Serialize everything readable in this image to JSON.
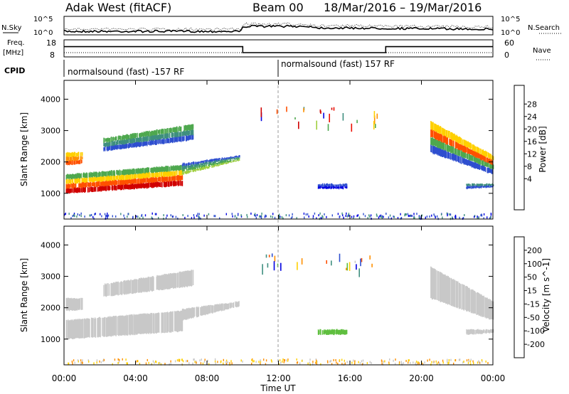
{
  "header": {
    "title": "Adak West (fitACF)",
    "beam": "Beam 00",
    "date_range": "18/Mar/2016 – 19/Mar/2016"
  },
  "side_labels": {
    "nsky": "N.Sky",
    "nsearch": "N.Search",
    "freq": "Freq.",
    "freq_unit": "[MHz]",
    "nave": "Nave",
    "cpid": "CPID"
  },
  "noise_ticks": {
    "top": "10^5",
    "bottom": "10^0"
  },
  "freq_ticks": {
    "left": [
      "18",
      "8"
    ],
    "right": [
      "60",
      "0"
    ]
  },
  "cpid_segments": [
    {
      "label": "normalsound (fast) -157 RF",
      "start_hour": 0
    },
    {
      "label": "normalsound (fast) 157 RF",
      "start_hour": 12
    }
  ],
  "chart_data": [
    {
      "type": "heatmap",
      "name": "power",
      "ylabel": "Slant Range [km]",
      "yticks": [
        "1000",
        "2000",
        "3000",
        "4000"
      ],
      "ylim": [
        180,
        4600
      ],
      "xlim_hours": [
        0,
        24
      ],
      "colorbar": {
        "label": "Power [dB]",
        "ticks": [
          "28",
          "24",
          "20",
          "16",
          "12",
          "8",
          "4"
        ],
        "colors": [
          "#0000e0",
          "#2f4fcf",
          "#3f8f7f",
          "#4fa84f",
          "#9fcf3f",
          "#ffd000",
          "#ff9000",
          "#ff5000",
          "#ee1000",
          "#d00000"
        ]
      },
      "bands": [
        {
          "x": [
            0.1,
            6.6
          ],
          "r0": [
            1000,
            1250
          ],
          "r1": [
            1600,
            1900
          ],
          "levels": [
            9,
            7,
            5,
            3
          ]
        },
        {
          "x": [
            6.6,
            9.8
          ],
          "r0": [
            1600,
            2050
          ],
          "r1": [
            1950,
            2200
          ],
          "levels": [
            4,
            3,
            2,
            1
          ]
        },
        {
          "x": [
            0.1,
            1.0
          ],
          "r0": [
            1900,
            1950
          ],
          "r1": [
            2300,
            2300
          ],
          "levels": [
            7,
            6,
            5
          ]
        },
        {
          "x": [
            2.2,
            7.2
          ],
          "r0": [
            2350,
            2700
          ],
          "r1": [
            2750,
            3200
          ],
          "levels": [
            1,
            2,
            3
          ]
        },
        {
          "x": [
            20.5,
            24.0
          ],
          "r0": [
            2300,
            1600
          ],
          "r1": [
            3300,
            2200
          ],
          "levels": [
            1,
            3,
            7,
            5
          ]
        },
        {
          "x": [
            22.5,
            24.0
          ],
          "r0": [
            1150,
            1200
          ],
          "r1": [
            1300,
            1300
          ],
          "levels": [
            1,
            2
          ]
        },
        {
          "x": [
            14.2,
            15.8
          ],
          "r0": [
            1150,
            1150
          ],
          "r1": [
            1300,
            1300
          ],
          "levels": [
            0,
            1
          ]
        }
      ]
    },
    {
      "type": "heatmap",
      "name": "velocity",
      "ylabel": "Slant Range [km]",
      "yticks": [
        "1000",
        "2000",
        "3000",
        "4000"
      ],
      "ylim": [
        180,
        4600
      ],
      "xlim_hours": [
        0,
        24
      ],
      "colorbar": {
        "label": "Velocity [m s^-1]",
        "ticks": [
          "200",
          "100",
          "50",
          "15",
          "-15",
          "-50",
          "-100",
          "-200"
        ],
        "colors": [
          "#0000e0",
          "#2f4fcf",
          "#3f8f7f",
          "#5fbf3f",
          "#c8c8c8",
          "#ffd000",
          "#ff9000",
          "#ff5000",
          "#e00000"
        ]
      },
      "bands": [
        {
          "x": [
            0.1,
            6.6
          ],
          "r0": [
            1000,
            1250
          ],
          "r1": [
            1600,
            1900
          ],
          "levels": [
            4
          ]
        },
        {
          "x": [
            6.6,
            9.8
          ],
          "r0": [
            1600,
            2050
          ],
          "r1": [
            1950,
            2200
          ],
          "levels": [
            4
          ]
        },
        {
          "x": [
            0.1,
            1.0
          ],
          "r0": [
            1900,
            1950
          ],
          "r1": [
            2300,
            2300
          ],
          "levels": [
            4
          ]
        },
        {
          "x": [
            2.2,
            7.2
          ],
          "r0": [
            2350,
            2700
          ],
          "r1": [
            2750,
            3200
          ],
          "levels": [
            4
          ]
        },
        {
          "x": [
            20.5,
            24.0
          ],
          "r0": [
            2300,
            1600
          ],
          "r1": [
            3300,
            2200
          ],
          "levels": [
            4
          ]
        },
        {
          "x": [
            22.5,
            24.0
          ],
          "r0": [
            1150,
            1200
          ],
          "r1": [
            1300,
            1300
          ],
          "levels": [
            4
          ]
        },
        {
          "x": [
            14.2,
            15.8
          ],
          "r0": [
            1150,
            1150
          ],
          "r1": [
            1300,
            1300
          ],
          "levels": [
            3
          ]
        }
      ]
    }
  ],
  "frequency_trace": {
    "x_hours": [
      0,
      10,
      10,
      18,
      18,
      24
    ],
    "mhz": [
      14,
      14,
      10.5,
      10.5,
      14,
      14
    ]
  },
  "x_axis": {
    "label": "Time UT",
    "ticks": [
      "00:00",
      "04:00",
      "08:00",
      "12:00",
      "16:00",
      "20:00",
      "00:00"
    ]
  }
}
